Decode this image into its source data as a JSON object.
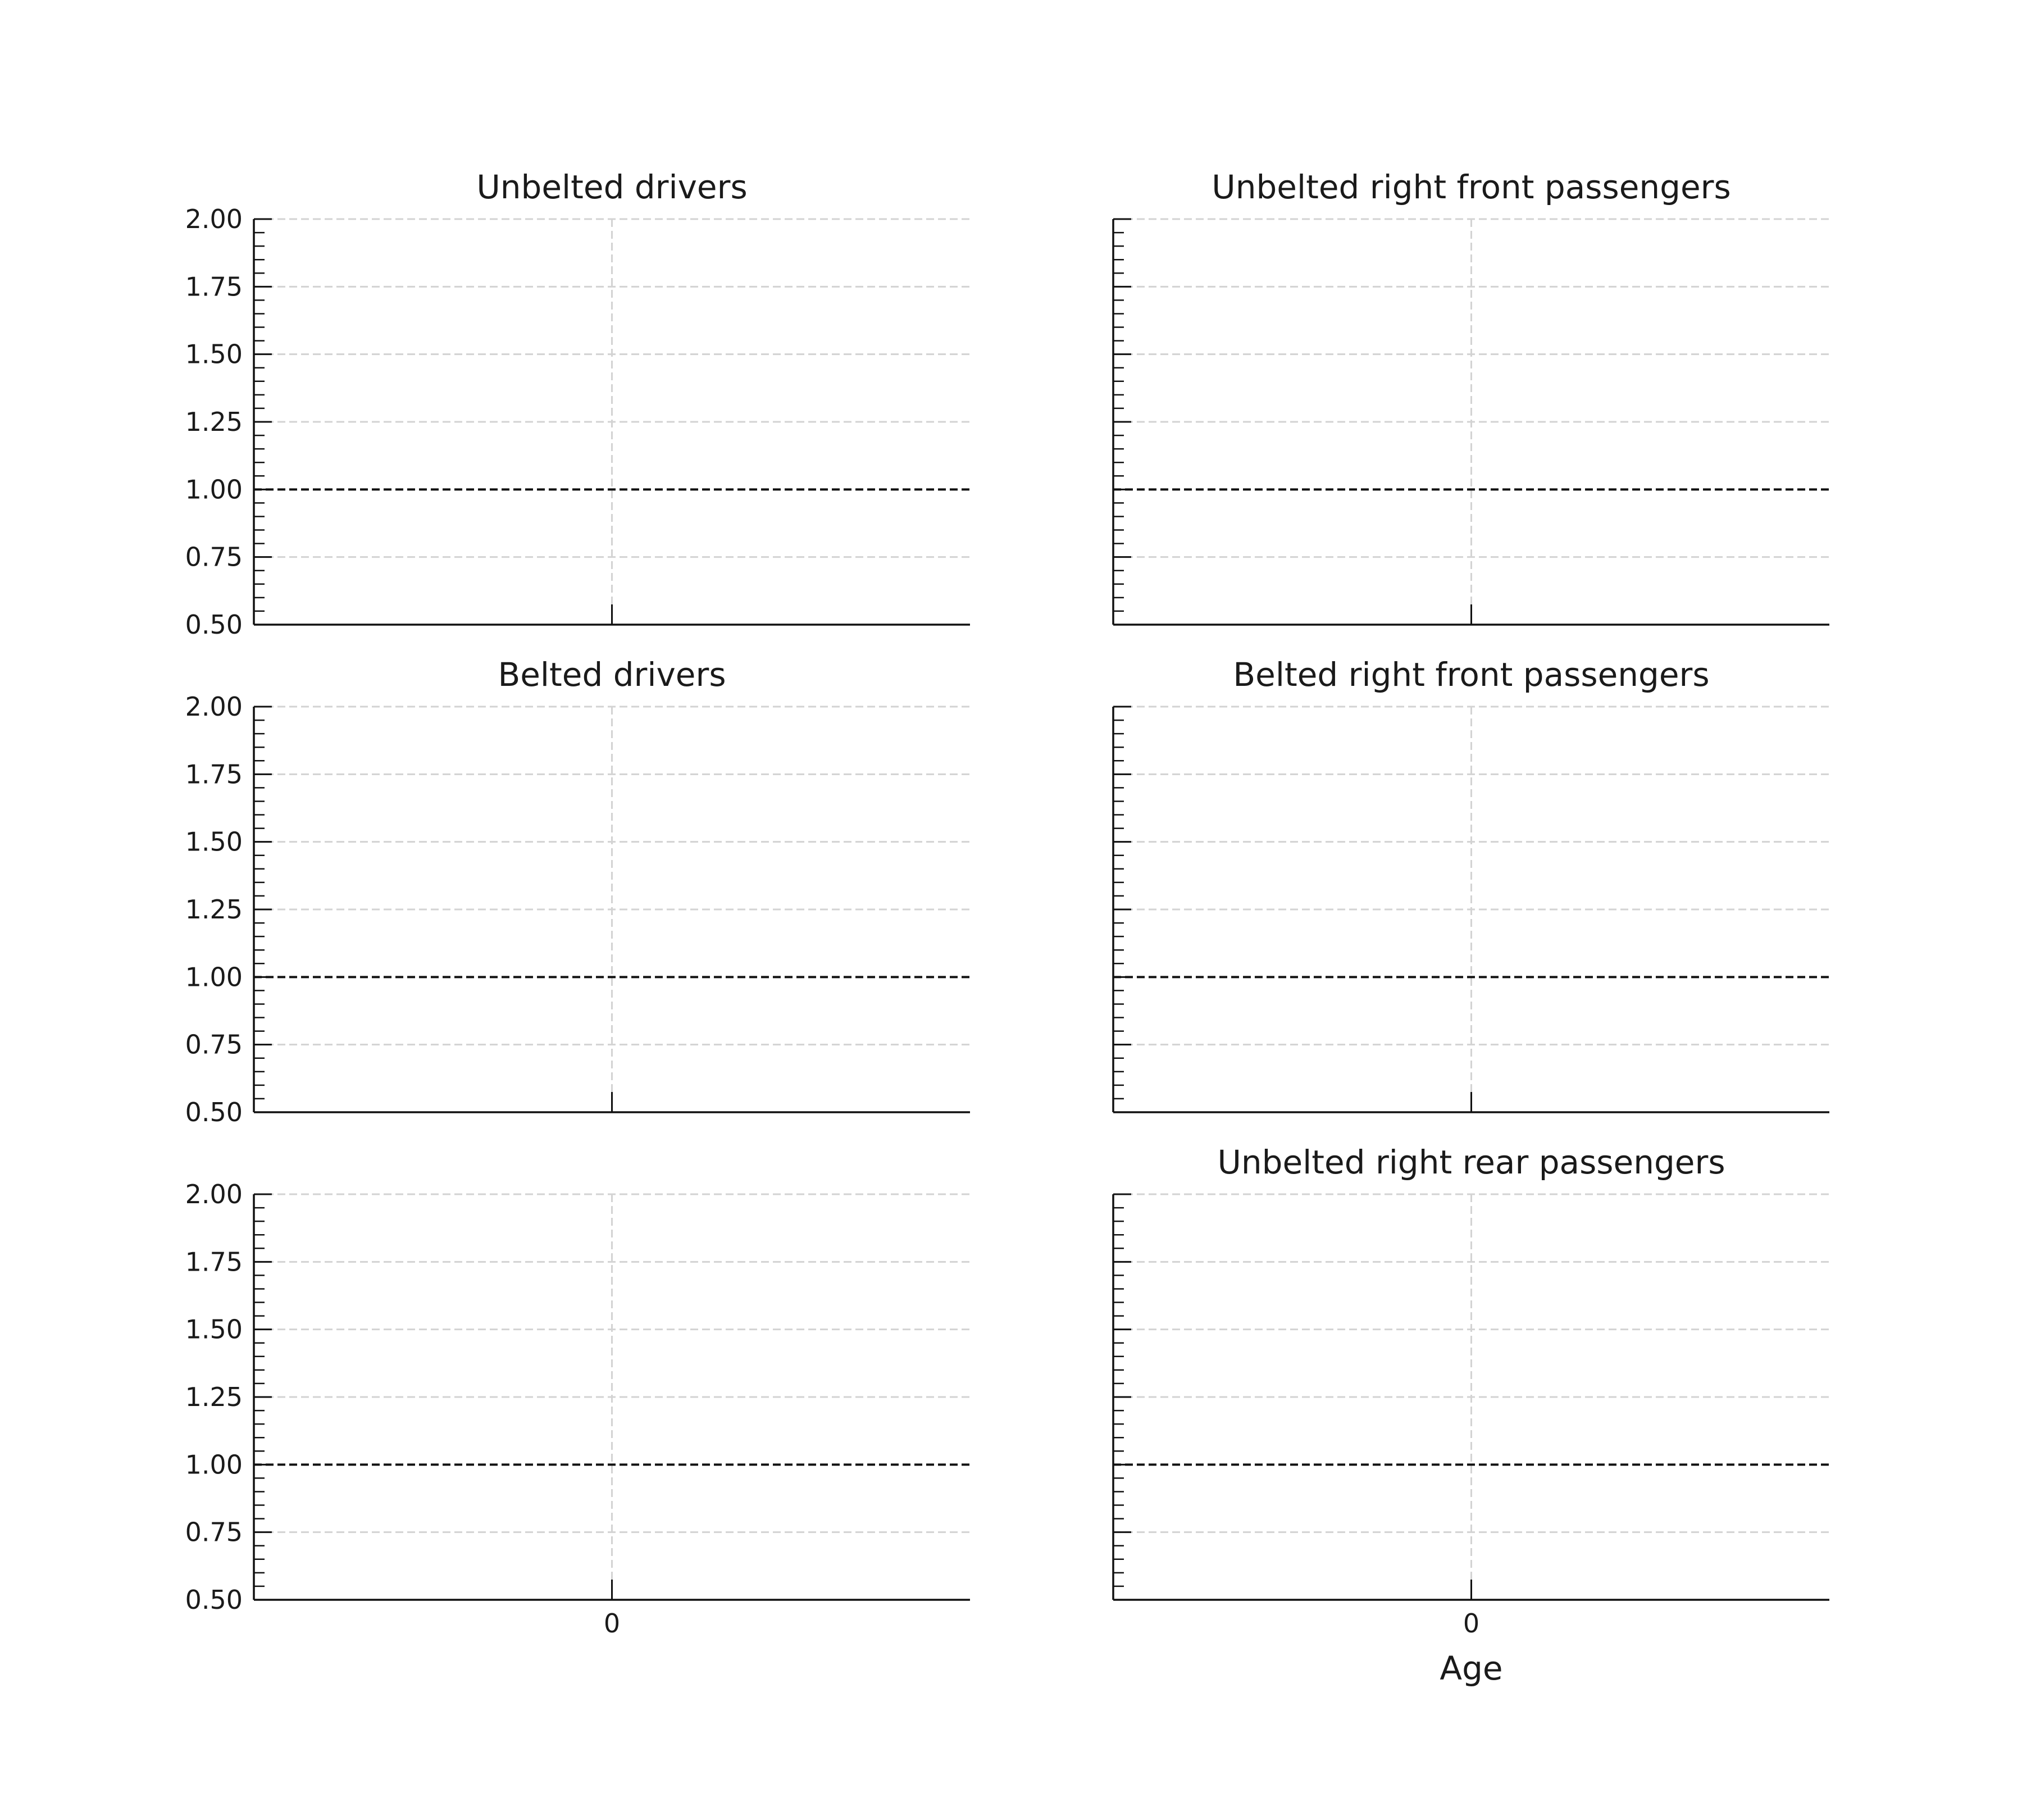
{
  "chart_data": [
    {
      "type": "line",
      "title": "Unbelted drivers",
      "xlabel": "",
      "ylabel": "",
      "x_ticks": [
        0
      ],
      "x_tick_labels_shown": false,
      "y_ticks": [
        "0.50",
        "0.75",
        "1.00",
        "1.25",
        "1.50",
        "1.75",
        "2.00"
      ],
      "y_tick_labels_shown": true,
      "ylim": [
        0.5,
        2.0
      ],
      "reference_line": 1.0,
      "grid": true,
      "series": []
    },
    {
      "type": "line",
      "title": "Unbelted right front passengers",
      "xlabel": "",
      "ylabel": "",
      "x_ticks": [
        0
      ],
      "x_tick_labels_shown": false,
      "y_ticks": [
        "0.50",
        "0.75",
        "1.00",
        "1.25",
        "1.50",
        "1.75",
        "2.00"
      ],
      "y_tick_labels_shown": false,
      "ylim": [
        0.5,
        2.0
      ],
      "reference_line": 1.0,
      "grid": true,
      "series": []
    },
    {
      "type": "line",
      "title": "Belted drivers",
      "xlabel": "",
      "ylabel": "",
      "x_ticks": [
        0
      ],
      "x_tick_labels_shown": false,
      "y_ticks": [
        "0.50",
        "0.75",
        "1.00",
        "1.25",
        "1.50",
        "1.75",
        "2.00"
      ],
      "y_tick_labels_shown": true,
      "ylim": [
        0.5,
        2.0
      ],
      "reference_line": 1.0,
      "grid": true,
      "series": []
    },
    {
      "type": "line",
      "title": "Belted right front passengers",
      "xlabel": "",
      "ylabel": "",
      "x_ticks": [
        0
      ],
      "x_tick_labels_shown": false,
      "y_ticks": [
        "0.50",
        "0.75",
        "1.00",
        "1.25",
        "1.50",
        "1.75",
        "2.00"
      ],
      "y_tick_labels_shown": false,
      "ylim": [
        0.5,
        2.0
      ],
      "reference_line": 1.0,
      "grid": true,
      "series": []
    },
    {
      "type": "line",
      "title": "",
      "xlabel": "",
      "ylabel": "",
      "x_ticks": [
        0
      ],
      "x_tick_labels_shown": true,
      "y_ticks": [
        "0.50",
        "0.75",
        "1.00",
        "1.25",
        "1.50",
        "1.75",
        "2.00"
      ],
      "y_tick_labels_shown": true,
      "ylim": [
        0.5,
        2.0
      ],
      "reference_line": 1.0,
      "grid": true,
      "series": []
    },
    {
      "type": "line",
      "title": "Unbelted right rear passengers",
      "xlabel": "Age",
      "ylabel": "",
      "x_ticks": [
        0
      ],
      "x_tick_labels_shown": true,
      "y_ticks": [
        "0.50",
        "0.75",
        "1.00",
        "1.25",
        "1.50",
        "1.75",
        "2.00"
      ],
      "y_tick_labels_shown": false,
      "ylim": [
        0.5,
        2.0
      ],
      "reference_line": 1.0,
      "grid": true,
      "series": []
    }
  ]
}
